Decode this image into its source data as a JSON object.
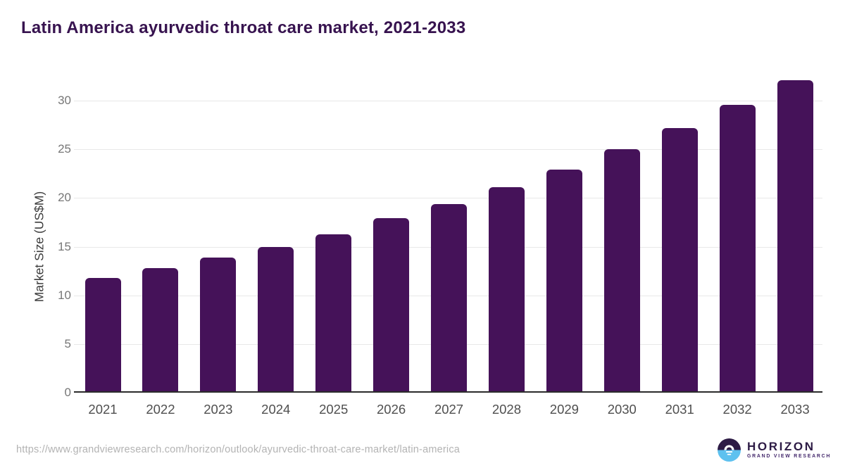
{
  "header": {
    "title": "Latin America ayurvedic throat care market, 2021-2033"
  },
  "chart_data": {
    "type": "bar",
    "title": "Latin America ayurvedic throat care market, 2021-2033",
    "categories": [
      "2021",
      "2022",
      "2023",
      "2024",
      "2025",
      "2026",
      "2027",
      "2028",
      "2029",
      "2030",
      "2031",
      "2032",
      "2033"
    ],
    "values": [
      11.8,
      12.8,
      13.9,
      15.0,
      16.3,
      17.9,
      19.4,
      21.1,
      22.9,
      25.0,
      27.2,
      29.6,
      32.1
    ],
    "xlabel": "",
    "ylabel": "Market Size (US$M)",
    "ylim": [
      0,
      33
    ],
    "yticks": [
      0,
      5,
      10,
      15,
      20,
      25,
      30
    ],
    "grid": "horizontal-only",
    "legend": "none",
    "bar_color": "#451259"
  },
  "footer": {
    "source_url": "https://www.grandviewresearch.com/horizon/outlook/ayurvedic-throat-care-market/latin-america",
    "logo": {
      "wordmark": "HORIZON",
      "tagline": "GRAND VIEW RESEARCH"
    }
  },
  "colors": {
    "bar": "#451259",
    "title": "#37134f",
    "axis": "#2b2b2b",
    "gridline": "#e8e8e8",
    "tick_label": "#767676",
    "category_label": "#4f4f4f",
    "url": "#b3b3b3",
    "logo_purple": "#2d1b45",
    "logo_blue": "#5ec1ef"
  }
}
